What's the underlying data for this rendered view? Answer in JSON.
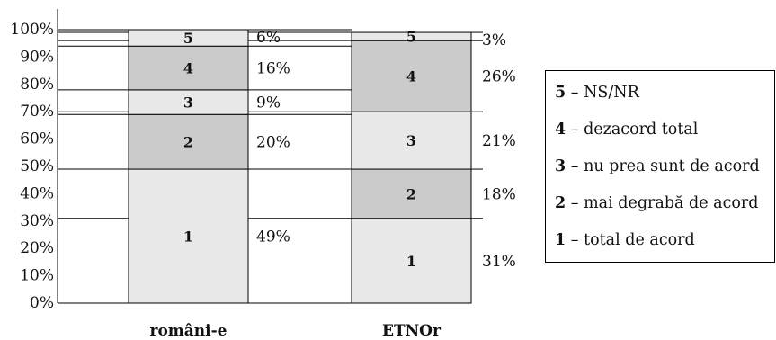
{
  "chart_data": {
    "type": "bar",
    "stacked": true,
    "ylim": [
      0,
      100
    ],
    "y_ticks": [
      "0%",
      "10%",
      "20%",
      "30%",
      "40%",
      "50%",
      "60%",
      "70%",
      "80%",
      "90%",
      "100%"
    ],
    "categories": [
      "români-e",
      "ETNOr"
    ],
    "segment_labels": [
      "1",
      "2",
      "3",
      "4",
      "5"
    ],
    "bars": [
      {
        "category": "români-e",
        "values": [
          49,
          20,
          9,
          16,
          6
        ],
        "labels": [
          "49%",
          "20%",
          "9%",
          "16%",
          "6%"
        ]
      },
      {
        "category": "ETNOr",
        "values": [
          31,
          18,
          21,
          26,
          3
        ],
        "labels": [
          "31%",
          "18%",
          "21%",
          "26%",
          "3%"
        ]
      }
    ],
    "segment_colors": [
      "#e8e8e8",
      "#cbcbcb",
      "#e8e8e8",
      "#cbcbcb",
      "#e8e8e8"
    ],
    "legend": {
      "position": "right",
      "items": [
        {
          "key": "5",
          "label": "NS/NR"
        },
        {
          "key": "4",
          "label": "dezacord total"
        },
        {
          "key": "3",
          "label": "nu prea sunt de acord"
        },
        {
          "key": "2",
          "label": "mai degrabă de acord"
        },
        {
          "key": "1",
          "label": "total de acord"
        }
      ]
    }
  }
}
